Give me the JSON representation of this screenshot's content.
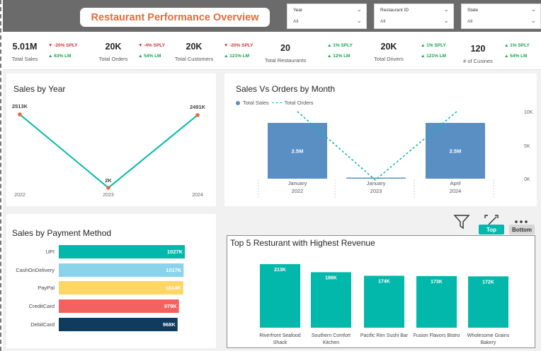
{
  "header": {
    "title": "Restaurant Performance Overview",
    "slicers": [
      {
        "label": "Year",
        "value": "All"
      },
      {
        "label": "Restaurant ID",
        "value": "All"
      },
      {
        "label": "State",
        "value": "All"
      }
    ]
  },
  "kpis": [
    {
      "value": "5.01M",
      "label": "Total Sales",
      "sply": "-20% SPLY",
      "sply_dir": "down",
      "lm": "63% LM",
      "lm_dir": "up"
    },
    {
      "value": "20K",
      "label": "Total Orders",
      "sply": "-4% SPLY",
      "sply_dir": "down",
      "lm": "54% LM",
      "lm_dir": "up"
    },
    {
      "value": "20K",
      "label": "Total Customers",
      "sply": "-20% SPLY",
      "sply_dir": "down",
      "lm": "121% LM",
      "lm_dir": "up"
    },
    {
      "value": "20",
      "label": "Total Restaurants",
      "sply": "1% SPLY",
      "sply_dir": "up",
      "lm": "12% LM",
      "lm_dir": "up"
    },
    {
      "value": "20K",
      "label": "Total Drivers",
      "sply": "1% SPLY",
      "sply_dir": "up",
      "lm": "121% LM",
      "lm_dir": "up"
    },
    {
      "value": "120",
      "label": "# of Cusines",
      "sply": "1% SPLY",
      "sply_dir": "up",
      "lm": "54% LM",
      "lm_dir": "up"
    }
  ],
  "colors": {
    "teal": "#01b8aa",
    "blue_bar": "#5a8fc4",
    "orange_marker": "#e46c3a",
    "title_orange": "#e46c3a",
    "header_gray": "#6b6b6b",
    "up_green": "#1aa14f",
    "down_red": "#d13438"
  },
  "visual_controls": {
    "filter_icon": "filter-icon",
    "focus_icon": "focus-mode-icon",
    "more_icon": "more-options-icon",
    "top_label": "Top",
    "bottom_label": "Bottom"
  },
  "chart_data": [
    {
      "id": "sales_by_year",
      "type": "line",
      "title": "Sales by Year",
      "x": [
        "2022",
        "2023",
        "2024"
      ],
      "values": [
        2513,
        2,
        2491
      ],
      "data_labels": [
        "2513K",
        "2K",
        "2491K"
      ],
      "color": "#01b8aa",
      "marker_color": "#e46c3a"
    },
    {
      "id": "sales_vs_orders_by_month",
      "type": "bar",
      "title": "Sales Vs Orders by Month",
      "categories": [
        [
          "January",
          "2022"
        ],
        [
          "January",
          "2023"
        ],
        [
          "April",
          "2024"
        ]
      ],
      "series": [
        {
          "name": "Total Sales",
          "type": "bar",
          "values": [
            2500000,
            2000,
            2500000
          ],
          "data_labels": [
            "2.5M",
            "",
            "2.5M"
          ]
        },
        {
          "name": "Total Orders",
          "type": "line",
          "values": [
            10000,
            0,
            10000
          ]
        }
      ],
      "y2_ticks": [
        "10K",
        "5K",
        "0K"
      ],
      "y2lim": [
        0,
        10000
      ],
      "legend": "top-left"
    },
    {
      "id": "sales_by_payment_method",
      "type": "bar",
      "orientation": "horizontal",
      "title": "Sales by Payment Method",
      "categories": [
        "UPI",
        "CashOnDelivery",
        "PayPal",
        "CreditCard",
        "DebitCard"
      ],
      "values": [
        1027,
        1017,
        1014,
        979,
        968
      ],
      "data_labels": [
        "1027K",
        "1017K",
        "1014K",
        "979K",
        "968K"
      ],
      "colors": [
        "#01b8aa",
        "#8ad4eb",
        "#fdd663",
        "#f2625f",
        "#0f3b5f"
      ]
    },
    {
      "id": "top5_restaurants",
      "type": "bar",
      "title": "Top 5 Resturant with Highest Revenue",
      "categories": [
        [
          "Riverfront Seafood",
          "Shack"
        ],
        [
          "Southern Comfort",
          "Kitchen"
        ],
        [
          "Pacific Rim Sushi Bar"
        ],
        [
          "Fusion Flavors Bistro"
        ],
        [
          "Wholesome Grains",
          "Bakery"
        ]
      ],
      "values": [
        213,
        186,
        174,
        173,
        172
      ],
      "data_labels": [
        "213K",
        "186K",
        "174K",
        "173K",
        "172K"
      ],
      "color": "#01b8aa"
    }
  ]
}
